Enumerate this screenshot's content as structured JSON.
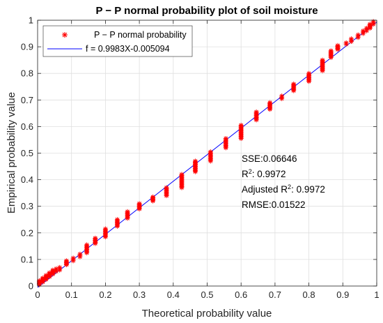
{
  "chart_data": {
    "type": "scatter",
    "title": "P − P normal probability plot of soil moisture",
    "xlabel": "Theoretical probability value",
    "ylabel": "Empirical probability value",
    "xlim": [
      0,
      1
    ],
    "ylim": [
      0,
      1
    ],
    "xticks": [
      "0",
      "0.1",
      "0.2",
      "0.3",
      "0.4",
      "0.5",
      "0.6",
      "0.7",
      "0.8",
      "0.9",
      "1"
    ],
    "yticks": [
      "0",
      "0.1",
      "0.2",
      "0.3",
      "0.4",
      "0.5",
      "0.6",
      "0.7",
      "0.8",
      "0.9",
      "1"
    ],
    "grid": true,
    "legend_position": "top-left",
    "series": [
      {
        "name": "P − P normal probability",
        "kind": "scatter",
        "marker": "asterisk",
        "color": "#ff0000",
        "clusters": [
          {
            "x": 0.005,
            "y": [
              0.005,
              0.02
            ]
          },
          {
            "x": 0.015,
            "y": [
              0.015,
              0.03
            ]
          },
          {
            "x": 0.025,
            "y": [
              0.025,
              0.04
            ]
          },
          {
            "x": 0.035,
            "y": [
              0.035,
              0.05
            ]
          },
          {
            "x": 0.045,
            "y": [
              0.045,
              0.06
            ]
          },
          {
            "x": 0.055,
            "y": [
              0.055,
              0.065
            ]
          },
          {
            "x": 0.065,
            "y": [
              0.06,
              0.07
            ]
          },
          {
            "x": 0.085,
            "y": [
              0.08,
              0.095
            ]
          },
          {
            "x": 0.105,
            "y": [
              0.095,
              0.105
            ]
          },
          {
            "x": 0.125,
            "y": [
              0.11,
              0.12
            ]
          },
          {
            "x": 0.145,
            "y": [
              0.125,
              0.155
            ]
          },
          {
            "x": 0.17,
            "y": [
              0.16,
              0.18
            ]
          },
          {
            "x": 0.2,
            "y": [
              0.185,
              0.215
            ]
          },
          {
            "x": 0.235,
            "y": [
              0.225,
              0.25
            ]
          },
          {
            "x": 0.265,
            "y": [
              0.255,
              0.28
            ]
          },
          {
            "x": 0.3,
            "y": [
              0.29,
              0.31
            ]
          },
          {
            "x": 0.34,
            "y": [
              0.32,
              0.335
            ]
          },
          {
            "x": 0.38,
            "y": [
              0.34,
              0.37
            ]
          },
          {
            "x": 0.425,
            "y": [
              0.37,
              0.42
            ]
          },
          {
            "x": 0.465,
            "y": [
              0.43,
              0.47
            ]
          },
          {
            "x": 0.51,
            "y": [
              0.47,
              0.505
            ]
          },
          {
            "x": 0.555,
            "y": [
              0.52,
              0.555
            ]
          },
          {
            "x": 0.6,
            "y": [
              0.555,
              0.605
            ]
          },
          {
            "x": 0.645,
            "y": [
              0.625,
              0.655
            ]
          },
          {
            "x": 0.685,
            "y": [
              0.665,
              0.69
            ]
          },
          {
            "x": 0.72,
            "y": [
              0.705,
              0.715
            ]
          },
          {
            "x": 0.755,
            "y": [
              0.735,
              0.76
            ]
          },
          {
            "x": 0.8,
            "y": [
              0.77,
              0.8
            ]
          },
          {
            "x": 0.84,
            "y": [
              0.81,
              0.85
            ]
          },
          {
            "x": 0.865,
            "y": [
              0.86,
              0.885
            ]
          },
          {
            "x": 0.885,
            "y": [
              0.89,
              0.905
            ]
          },
          {
            "x": 0.91,
            "y": [
              0.91,
              0.915
            ]
          },
          {
            "x": 0.925,
            "y": [
              0.92,
              0.93
            ]
          },
          {
            "x": 0.945,
            "y": [
              0.935,
              0.945
            ]
          },
          {
            "x": 0.96,
            "y": [
              0.95,
              0.96
            ]
          },
          {
            "x": 0.97,
            "y": [
              0.96,
              0.97
            ]
          },
          {
            "x": 0.98,
            "y": [
              0.97,
              0.985
            ]
          },
          {
            "x": 0.99,
            "y": [
              0.985,
              0.995
            ]
          }
        ]
      },
      {
        "name": "f = 0.9983X-0.005094",
        "kind": "line",
        "color": "#0000ff",
        "slope": 0.9983,
        "intercept": -0.005094,
        "x": [
          0,
          1
        ]
      }
    ],
    "annotations": {
      "sse": "SSE:0.06646",
      "r2_label": "R",
      "r2_sup": "2",
      "r2_value": ": 0.9972",
      "adj_r2_label": "Adjusted R",
      "adj_r2_sup": "2",
      "adj_r2_value": ": 0.9972",
      "rmse": "RMSE:0.01522"
    }
  }
}
